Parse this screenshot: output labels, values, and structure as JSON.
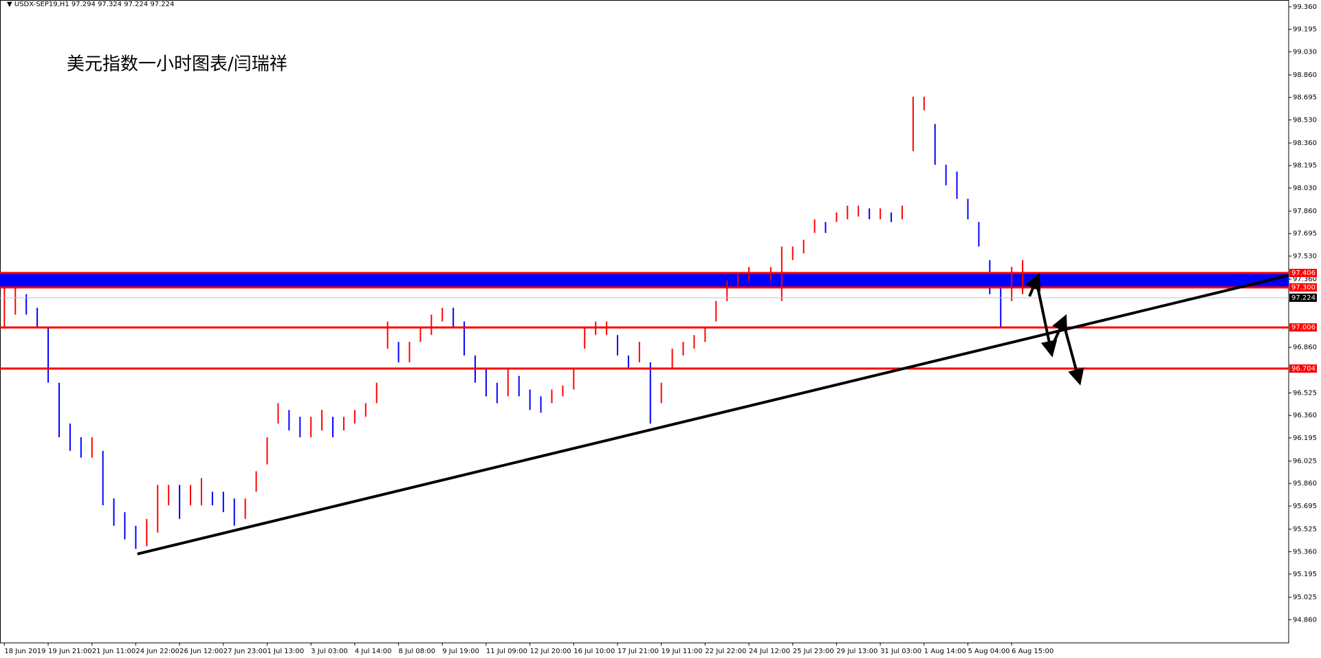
{
  "chart_data": {
    "type": "ohlc",
    "symbol": "USDX-SEP19,H1",
    "quote": [
      97.294,
      97.324,
      97.224,
      97.224
    ],
    "title": "美元指数一小时图表/闫瑞祥",
    "up_color": "#ff0000",
    "down_color": "#0000ff",
    "categories": [
      "18 Jun 2019",
      null,
      null,
      null,
      "19 Jun 21:00",
      null,
      null,
      null,
      "21 Jun 11:00",
      null,
      null,
      null,
      "24 Jun 22:00",
      null,
      null,
      null,
      "26 Jun 12:00",
      null,
      null,
      null,
      "27 Jun 23:00",
      null,
      null,
      null,
      "1 Jul 13:00",
      null,
      null,
      null,
      "3 Jul 03:00",
      null,
      null,
      null,
      "4 Jul 14:00",
      null,
      null,
      null,
      "8 Jul 08:00",
      null,
      null,
      null,
      "9 Jul 19:00",
      null,
      null,
      null,
      "11 Jul 09:00",
      null,
      null,
      null,
      "12 Jul 20:00",
      null,
      null,
      null,
      "16 Jul 10:00",
      null,
      null,
      null,
      "17 Jul 21:00",
      null,
      null,
      null,
      "19 Jul 11:00",
      null,
      null,
      null,
      "22 Jul 22:00",
      null,
      null,
      null,
      "24 Jul 12:00",
      null,
      null,
      null,
      "25 Jul 23:00",
      null,
      null,
      null,
      "29 Jul 13:00",
      null,
      null,
      null,
      "31 Jul 03:00",
      null,
      null,
      null,
      "1 Aug 14:00",
      null,
      null,
      null,
      "5 Aug 04:00",
      null,
      null,
      null,
      "6 Aug 15:00",
      null
    ],
    "high": [
      97.3,
      97.3,
      97.25,
      97.15,
      97.0,
      96.6,
      96.3,
      96.2,
      96.2,
      96.1,
      95.75,
      95.65,
      95.55,
      95.6,
      95.85,
      95.85,
      95.85,
      95.85,
      95.9,
      95.8,
      95.8,
      95.75,
      95.75,
      95.95,
      96.2,
      96.45,
      96.4,
      96.35,
      96.35,
      96.4,
      96.35,
      96.35,
      96.4,
      96.45,
      96.6,
      97.05,
      96.9,
      96.9,
      97.0,
      97.1,
      97.15,
      97.15,
      97.05,
      96.8,
      96.7,
      96.6,
      96.7,
      96.65,
      96.55,
      96.5,
      96.55,
      96.58,
      96.7,
      97.0,
      97.05,
      97.05,
      96.95,
      96.8,
      96.9,
      96.75,
      96.6,
      96.85,
      96.9,
      96.95,
      97.0,
      97.2,
      97.35,
      97.4,
      97.45,
      97.4,
      97.45,
      97.6,
      97.6,
      97.65,
      97.8,
      97.78,
      97.85,
      97.9,
      97.9,
      97.88,
      97.88,
      97.85,
      97.9,
      98.7,
      98.7,
      98.5,
      98.2,
      98.15,
      97.95,
      97.78,
      97.5,
      97.35,
      97.45,
      97.5
    ],
    "low": [
      97.0,
      97.1,
      97.1,
      97.0,
      96.6,
      96.2,
      96.1,
      96.05,
      96.05,
      95.7,
      95.55,
      95.45,
      95.38,
      95.4,
      95.5,
      95.7,
      95.6,
      95.7,
      95.7,
      95.7,
      95.65,
      95.55,
      95.6,
      95.8,
      96.0,
      96.3,
      96.25,
      96.2,
      96.2,
      96.25,
      96.2,
      96.25,
      96.3,
      96.35,
      96.45,
      96.85,
      96.75,
      96.75,
      96.9,
      96.95,
      97.05,
      97.0,
      96.8,
      96.6,
      96.5,
      96.45,
      96.5,
      96.5,
      96.4,
      96.38,
      96.45,
      96.5,
      96.55,
      96.85,
      96.95,
      96.95,
      96.8,
      96.7,
      96.75,
      96.3,
      96.45,
      96.7,
      96.8,
      96.85,
      96.9,
      97.05,
      97.2,
      97.3,
      97.35,
      97.3,
      97.35,
      97.2,
      97.5,
      97.55,
      97.7,
      97.7,
      97.78,
      97.8,
      97.82,
      97.8,
      97.8,
      97.78,
      97.8,
      98.3,
      98.6,
      98.2,
      98.05,
      97.95,
      97.8,
      97.6,
      97.25,
      97.0,
      97.2,
      97.25
    ],
    "xlim": [
      -0.4,
      117.3
    ],
    "ylim": [
      94.69,
      99.41
    ],
    "yticks": [
      {
        "value": 99.36,
        "label": "99.360"
      },
      {
        "value": 99.195,
        "label": "99.195"
      },
      {
        "value": 99.03,
        "label": "99.030"
      },
      {
        "value": 98.86,
        "label": "98.860"
      },
      {
        "value": 98.695,
        "label": "98.695"
      },
      {
        "value": 98.53,
        "label": "98.530"
      },
      {
        "value": 98.36,
        "label": "98.360"
      },
      {
        "value": 98.195,
        "label": "98.195"
      },
      {
        "value": 98.03,
        "label": "98.030"
      },
      {
        "value": 97.86,
        "label": "97.860"
      },
      {
        "value": 97.695,
        "label": "97.695"
      },
      {
        "value": 97.53,
        "label": "97.530"
      },
      {
        "value": 97.36,
        "label": "97.360"
      },
      {
        "value": 96.86,
        "label": "96.860"
      },
      {
        "value": 96.525,
        "label": "96.525"
      },
      {
        "value": 96.36,
        "label": "96.360"
      },
      {
        "value": 96.195,
        "label": "96.195"
      },
      {
        "value": 96.025,
        "label": "96.025"
      },
      {
        "value": 95.86,
        "label": "95.860"
      },
      {
        "value": 95.695,
        "label": "95.695"
      },
      {
        "value": 95.525,
        "label": "95.525"
      },
      {
        "value": 95.36,
        "label": "95.360"
      },
      {
        "value": 95.195,
        "label": "95.195"
      },
      {
        "value": 95.025,
        "label": "95.025"
      },
      {
        "value": 94.86,
        "label": "94.860"
      }
    ],
    "band": {
      "from": 97.3,
      "to": 97.406,
      "color": "#0000ff"
    },
    "levels": [
      {
        "value": 97.406,
        "label": "97.406",
        "color": "#ff0000"
      },
      {
        "value": 97.3,
        "label": "97.300",
        "color": "#ff0000"
      },
      {
        "value": 97.006,
        "label": "97.006",
        "color": "#ff0000"
      },
      {
        "value": 96.704,
        "label": "96.704",
        "color": "#ff0000"
      },
      {
        "value": 97.224,
        "label": "97.224",
        "color": "#000000"
      }
    ],
    "trendline": {
      "x": [
        12.15,
        117.3
      ],
      "y": [
        95.343,
        97.388
      ],
      "color": "#000000"
    }
  }
}
